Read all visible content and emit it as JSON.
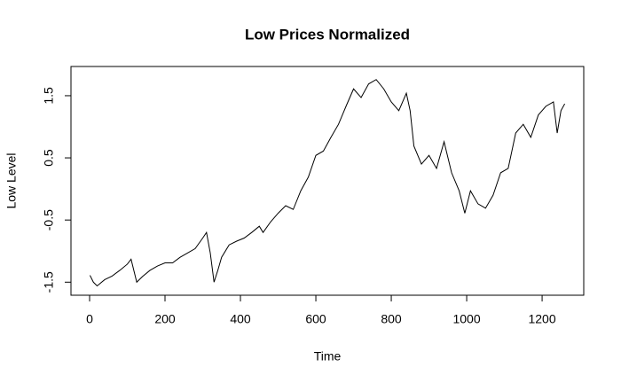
{
  "chart_data": {
    "type": "line",
    "title": "Low Prices Normalized",
    "xlabel": "Time",
    "ylabel": "Low Level",
    "x": [
      1,
      10,
      20,
      40,
      60,
      80,
      100,
      110,
      125,
      140,
      160,
      180,
      200,
      220,
      240,
      260,
      280,
      300,
      310,
      320,
      330,
      340,
      350,
      370,
      390,
      410,
      430,
      450,
      460,
      480,
      500,
      520,
      540,
      560,
      580,
      600,
      620,
      640,
      660,
      680,
      700,
      720,
      740,
      760,
      780,
      800,
      820,
      840,
      850,
      860,
      880,
      900,
      920,
      940,
      960,
      980,
      995,
      1010,
      1030,
      1050,
      1070,
      1090,
      1110,
      1130,
      1150,
      1170,
      1190,
      1210,
      1230,
      1240,
      1250,
      1260
    ],
    "values": [
      -1.39,
      -1.5,
      -1.56,
      -1.46,
      -1.4,
      -1.31,
      -1.21,
      -1.13,
      -1.5,
      -1.41,
      -1.31,
      -1.24,
      -1.19,
      -1.19,
      -1.1,
      -1.03,
      -0.96,
      -0.79,
      -0.7,
      -1.03,
      -1.5,
      -1.31,
      -1.1,
      -0.9,
      -0.84,
      -0.79,
      -0.7,
      -0.6,
      -0.7,
      -0.53,
      -0.39,
      -0.27,
      -0.33,
      -0.03,
      0.19,
      0.54,
      0.61,
      0.83,
      1.04,
      1.33,
      1.61,
      1.47,
      1.69,
      1.76,
      1.61,
      1.4,
      1.26,
      1.54,
      1.26,
      0.69,
      0.4,
      0.54,
      0.33,
      0.76,
      0.26,
      -0.03,
      -0.39,
      -0.03,
      -0.24,
      -0.31,
      -0.1,
      0.26,
      0.33,
      0.9,
      1.04,
      0.83,
      1.19,
      1.33,
      1.4,
      0.9,
      1.26,
      1.37
    ],
    "color": "#000000",
    "xlim": [
      -49.4,
      1310.4
    ],
    "xticks": [
      0,
      200,
      400,
      600,
      800,
      1000,
      1200
    ],
    "ylim": [
      -1.71,
      1.97
    ],
    "yticks": [
      -1.5,
      -0.5,
      0.5,
      1.5
    ]
  }
}
